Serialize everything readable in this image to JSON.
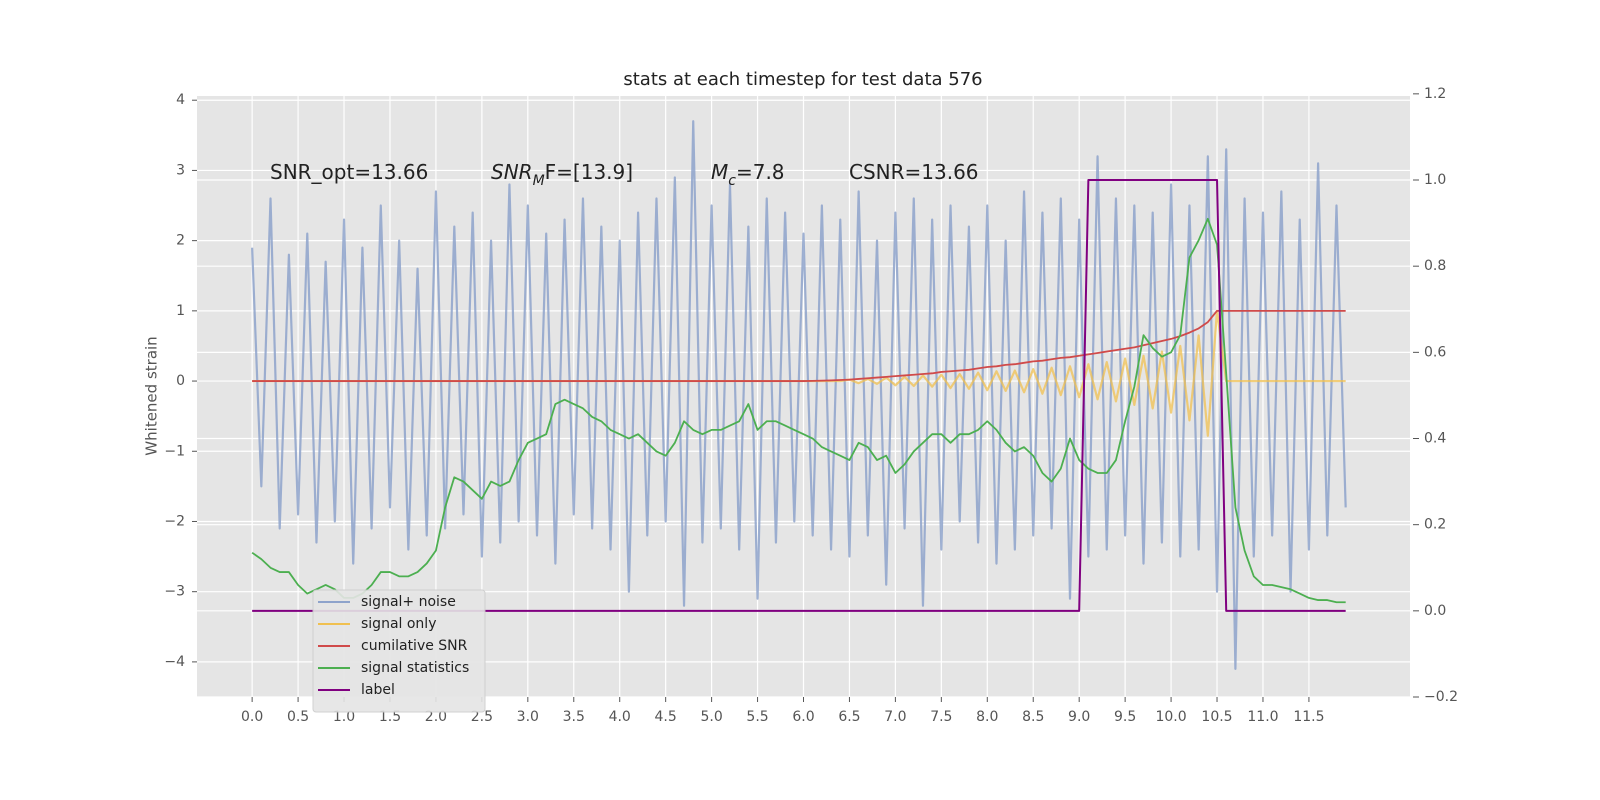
{
  "chart_data": {
    "type": "line",
    "title": "stats at each timestep for test data 576",
    "ylabel": "Whitened strain",
    "annotations": [
      {
        "main": "SNR_opt=13.66"
      },
      {
        "main": "SNR",
        "sub": "M",
        "tail": "F=[13.9]"
      },
      {
        "main": "M",
        "sub": "c",
        "tail": "=7.8"
      },
      {
        "main": "CSNR=13.66"
      }
    ],
    "xlim": [
      -0.6,
      12.6
    ],
    "ylim": [
      -4.5,
      4.06
    ],
    "y2lim": [
      -0.2,
      1.195
    ],
    "xticks": [
      {
        "value": 0,
        "label": "0.0"
      },
      {
        "value": 0.5,
        "label": "0.5"
      },
      {
        "value": 1,
        "label": "1.0"
      },
      {
        "value": 1.5,
        "label": "1.5"
      },
      {
        "value": 2,
        "label": "2.0"
      },
      {
        "value": 2.5,
        "label": "2.5"
      },
      {
        "value": 3,
        "label": "3.0"
      },
      {
        "value": 3.5,
        "label": "3.5"
      },
      {
        "value": 4,
        "label": "4.0"
      },
      {
        "value": 4.5,
        "label": "4.5"
      },
      {
        "value": 5,
        "label": "5.0"
      },
      {
        "value": 5.5,
        "label": "5.5"
      },
      {
        "value": 6,
        "label": "6.0"
      },
      {
        "value": 6.5,
        "label": "6.5"
      },
      {
        "value": 7,
        "label": "7.0"
      },
      {
        "value": 7.5,
        "label": "7.5"
      },
      {
        "value": 8,
        "label": "8.0"
      },
      {
        "value": 8.5,
        "label": "8.5"
      },
      {
        "value": 9,
        "label": "9.0"
      },
      {
        "value": 9.5,
        "label": "9.5"
      },
      {
        "value": 10,
        "label": "10.0"
      },
      {
        "value": 10.5,
        "label": "10.5"
      },
      {
        "value": 11,
        "label": "11.0"
      },
      {
        "value": 11.5,
        "label": "11.5"
      }
    ],
    "yticks": [
      {
        "value": -4,
        "label": "−4"
      },
      {
        "value": -3,
        "label": "−3"
      },
      {
        "value": -2,
        "label": "−2"
      },
      {
        "value": -1,
        "label": "−1"
      },
      0,
      1,
      2,
      3,
      4
    ],
    "y2ticks": [
      {
        "value": -0.2,
        "label": "−0.2"
      },
      {
        "value": 0,
        "label": "0.0"
      },
      0.2,
      0.4,
      0.6,
      0.8,
      {
        "value": 1,
        "label": "1.0"
      },
      1.2
    ],
    "grid": true,
    "legend": "lower left",
    "x": [
      0,
      0.1,
      0.2,
      0.3,
      0.4,
      0.5,
      0.6,
      0.7,
      0.8,
      0.9,
      1,
      1.1,
      1.2,
      1.3,
      1.4,
      1.5,
      1.6,
      1.7,
      1.8,
      1.9,
      2,
      2.1,
      2.2,
      2.3,
      2.4,
      2.5,
      2.6,
      2.7,
      2.8,
      2.9,
      3,
      3.1,
      3.2,
      3.3,
      3.4,
      3.5,
      3.6,
      3.7,
      3.8,
      3.9,
      4,
      4.1,
      4.2,
      4.3,
      4.4,
      4.5,
      4.6,
      4.7,
      4.8,
      4.9,
      5,
      5.1,
      5.2,
      5.3,
      5.4,
      5.5,
      5.6,
      5.7,
      5.8,
      5.9,
      6,
      6.1,
      6.2,
      6.3,
      6.4,
      6.5,
      6.6,
      6.7,
      6.8,
      6.9,
      7,
      7.1,
      7.2,
      7.3,
      7.4,
      7.5,
      7.6,
      7.7,
      7.8,
      7.9,
      8,
      8.1,
      8.2,
      8.3,
      8.4,
      8.5,
      8.6,
      8.7,
      8.8,
      8.9,
      9,
      9.1,
      9.2,
      9.3,
      9.4,
      9.5,
      9.6,
      9.7,
      9.8,
      9.9,
      10,
      10.1,
      10.2,
      10.3,
      10.4,
      10.5,
      10.6,
      10.7,
      10.8,
      10.9,
      11,
      11.1,
      11.2,
      11.3,
      11.4,
      11.5,
      11.6,
      11.7,
      11.8,
      11.9
    ],
    "series": [
      {
        "name": "signal+ noise",
        "color": "#8ea3cb",
        "values": [
          1.9,
          -1.5,
          2.6,
          -2.1,
          1.8,
          -1.9,
          2.1,
          -2.3,
          1.7,
          -2.0,
          2.3,
          -2.6,
          1.9,
          -2.1,
          2.5,
          -1.8,
          2.0,
          -2.4,
          1.6,
          -2.2,
          2.7,
          -2.1,
          2.2,
          -1.9,
          2.4,
          -2.5,
          2.0,
          -2.3,
          2.8,
          -2.0,
          2.5,
          -2.2,
          2.1,
          -2.6,
          2.3,
          -1.9,
          2.6,
          -2.1,
          2.2,
          -2.4,
          2.0,
          -3.0,
          2.4,
          -2.2,
          2.6,
          -2.0,
          2.9,
          -3.2,
          3.7,
          -2.3,
          2.5,
          -2.1,
          2.8,
          -2.4,
          2.2,
          -3.1,
          2.6,
          -2.3,
          2.4,
          -2.0,
          2.1,
          -2.2,
          2.5,
          -2.4,
          2.3,
          -2.5,
          2.7,
          -2.2,
          2.0,
          -2.9,
          2.4,
          -2.1,
          2.6,
          -3.2,
          2.3,
          -2.4,
          2.5,
          -2.0,
          2.2,
          -2.3,
          2.5,
          -2.6,
          2.0,
          -2.4,
          2.7,
          -2.2,
          2.4,
          -2.1,
          2.6,
          -3.1,
          2.3,
          -2.5,
          3.2,
          -2.4,
          2.6,
          -2.2,
          2.5,
          -2.6,
          2.4,
          -2.3,
          2.8,
          -2.5,
          2.5,
          -2.4,
          3.2,
          -3.0,
          3.3,
          -4.1,
          2.6,
          -2.5,
          2.4,
          -2.2,
          2.7,
          -3.0,
          2.3,
          -2.4,
          3.1,
          -2.2,
          2.5,
          -1.8
        ]
      },
      {
        "name": "signal only",
        "color": "#f0c050",
        "values": [
          0,
          0,
          0,
          0,
          0,
          0,
          0,
          0,
          0,
          0,
          0,
          0,
          0,
          0,
          0,
          0,
          0,
          0,
          0,
          0,
          0,
          0,
          0,
          0,
          0,
          0,
          0,
          0,
          0,
          0,
          0,
          0,
          0,
          0,
          0,
          0,
          0,
          0,
          0,
          0,
          0,
          0,
          0,
          0,
          0,
          0,
          0,
          0,
          0,
          0,
          0,
          0,
          0,
          0,
          0,
          0,
          0,
          0,
          0,
          0,
          0,
          0,
          0,
          0,
          0,
          0.02,
          -0.03,
          0.03,
          -0.04,
          0.05,
          -0.06,
          0.06,
          -0.07,
          0.08,
          -0.08,
          0.09,
          -0.1,
          0.1,
          -0.11,
          0.12,
          -0.13,
          0.14,
          -0.14,
          0.15,
          -0.16,
          0.17,
          -0.18,
          0.19,
          -0.2,
          0.21,
          -0.23,
          0.24,
          -0.26,
          0.27,
          -0.29,
          0.32,
          -0.34,
          0.36,
          -0.39,
          0.42,
          -0.45,
          0.5,
          -0.56,
          0.65,
          -0.78,
          1.0,
          0,
          0,
          0,
          0,
          0,
          0,
          0,
          0,
          0,
          0,
          0,
          0,
          0,
          0
        ]
      },
      {
        "name": "cumilative SNR",
        "color": "#d04a4a",
        "values": [
          0,
          0,
          0,
          0,
          0,
          0,
          0,
          0,
          0,
          0,
          0,
          0,
          0,
          0,
          0,
          0,
          0,
          0,
          0,
          0,
          0,
          0,
          0,
          0,
          0,
          0,
          0,
          0,
          0,
          0,
          0,
          0,
          0,
          0,
          0,
          0,
          0,
          0,
          0,
          0,
          0,
          0,
          0,
          0,
          0,
          0,
          0,
          0,
          0,
          0,
          0,
          0,
          0,
          0,
          0,
          0,
          0,
          0,
          0,
          0,
          0,
          0.003,
          0.006,
          0.01,
          0.015,
          0.02,
          0.03,
          0.04,
          0.05,
          0.06,
          0.07,
          0.08,
          0.09,
          0.1,
          0.11,
          0.13,
          0.14,
          0.15,
          0.16,
          0.18,
          0.2,
          0.21,
          0.23,
          0.24,
          0.26,
          0.28,
          0.29,
          0.31,
          0.33,
          0.34,
          0.36,
          0.38,
          0.4,
          0.42,
          0.44,
          0.46,
          0.48,
          0.51,
          0.54,
          0.57,
          0.6,
          0.64,
          0.69,
          0.75,
          0.84,
          1.0,
          1.0,
          1.0,
          1.0,
          1.0,
          1.0,
          1.0,
          1.0,
          1.0,
          1.0,
          1.0,
          1.0,
          1.0,
          1.0,
          1.0
        ]
      },
      {
        "name": "signal statistics",
        "color": "#4caf50",
        "axis": "y2",
        "values": [
          0.135,
          0.12,
          0.1,
          0.09,
          0.09,
          0.06,
          0.04,
          0.05,
          0.06,
          0.05,
          0.03,
          0.03,
          0.04,
          0.06,
          0.09,
          0.09,
          0.08,
          0.08,
          0.09,
          0.11,
          0.14,
          0.24,
          0.31,
          0.3,
          0.28,
          0.26,
          0.3,
          0.29,
          0.3,
          0.35,
          0.39,
          0.4,
          0.41,
          0.48,
          0.49,
          0.48,
          0.47,
          0.45,
          0.44,
          0.42,
          0.41,
          0.4,
          0.41,
          0.39,
          0.37,
          0.36,
          0.39,
          0.44,
          0.42,
          0.41,
          0.42,
          0.42,
          0.43,
          0.44,
          0.48,
          0.42,
          0.44,
          0.44,
          0.43,
          0.42,
          0.41,
          0.4,
          0.38,
          0.37,
          0.36,
          0.35,
          0.39,
          0.38,
          0.35,
          0.36,
          0.32,
          0.34,
          0.37,
          0.39,
          0.41,
          0.41,
          0.39,
          0.41,
          0.41,
          0.42,
          0.44,
          0.42,
          0.39,
          0.37,
          0.38,
          0.36,
          0.32,
          0.3,
          0.33,
          0.4,
          0.35,
          0.33,
          0.32,
          0.32,
          0.35,
          0.44,
          0.52,
          0.64,
          0.61,
          0.59,
          0.6,
          0.64,
          0.82,
          0.86,
          0.91,
          0.85,
          0.55,
          0.24,
          0.14,
          0.08,
          0.06,
          0.06,
          0.055,
          0.05,
          0.04,
          0.03,
          0.025,
          0.025,
          0.02,
          0.02
        ]
      },
      {
        "name": "label",
        "color": "#800080",
        "axis": "y2",
        "values": [
          0,
          0,
          0,
          0,
          0,
          0,
          0,
          0,
          0,
          0,
          0,
          0,
          0,
          0,
          0,
          0,
          0,
          0,
          0,
          0,
          0,
          0,
          0,
          0,
          0,
          0,
          0,
          0,
          0,
          0,
          0,
          0,
          0,
          0,
          0,
          0,
          0,
          0,
          0,
          0,
          0,
          0,
          0,
          0,
          0,
          0,
          0,
          0,
          0,
          0,
          0,
          0,
          0,
          0,
          0,
          0,
          0,
          0,
          0,
          0,
          0,
          0,
          0,
          0,
          0,
          0,
          0,
          0,
          0,
          0,
          0,
          0,
          0,
          0,
          0,
          0,
          0,
          0,
          0,
          0,
          0,
          0,
          0,
          0,
          0,
          0,
          0,
          0,
          0,
          0,
          0,
          1,
          1,
          1,
          1,
          1,
          1,
          1,
          1,
          1,
          1,
          1,
          1,
          1,
          1,
          1,
          0,
          0,
          0,
          0,
          0,
          0,
          0,
          0,
          0,
          0,
          0,
          0,
          0,
          0
        ]
      }
    ]
  }
}
